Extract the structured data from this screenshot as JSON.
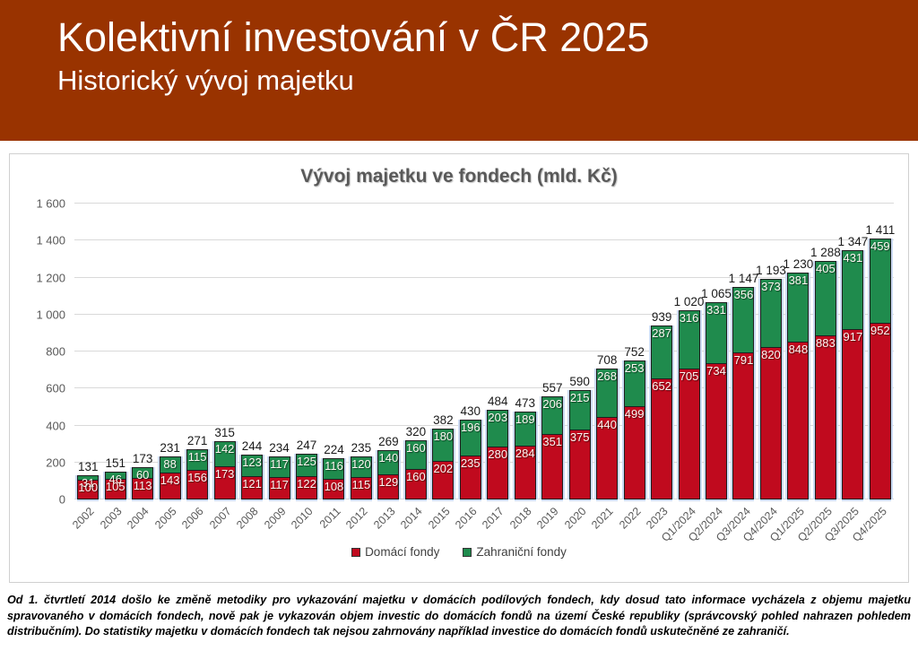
{
  "header": {
    "title": "Kolektivní investování v ČR 2025",
    "subtitle": "Historický vývoj majetku"
  },
  "chart_data": {
    "type": "bar",
    "stacked": true,
    "title": "Vývoj majetku ve fondech (mld. Kč)",
    "categories": [
      "2002",
      "2003",
      "2004",
      "2005",
      "2006",
      "2007",
      "2008",
      "2009",
      "2010",
      "2011",
      "2012",
      "2013",
      "2014",
      "2015",
      "2016",
      "2017",
      "2018",
      "2019",
      "2020",
      "2021",
      "2022",
      "2023",
      "Q1/2024",
      "Q2/2024",
      "Q3/2024",
      "Q4/2024",
      "Q1/2025",
      "Q2/2025",
      "Q3/2025",
      "Q4/2025"
    ],
    "series": [
      {
        "name": "Domácí fondy",
        "color": "#c00a1e",
        "values": [
          100,
          105,
          113,
          143,
          156,
          173,
          121,
          117,
          122,
          108,
          115,
          129,
          160,
          202,
          235,
          280,
          284,
          351,
          375,
          440,
          499,
          652,
          705,
          734,
          791,
          820,
          848,
          883,
          917,
          952
        ]
      },
      {
        "name": "Zahraniční fondy",
        "color": "#1f8b4d",
        "values": [
          31,
          46,
          60,
          88,
          115,
          142,
          123,
          117,
          125,
          116,
          120,
          140,
          160,
          180,
          196,
          203,
          189,
          206,
          215,
          268,
          253,
          287,
          316,
          331,
          356,
          373,
          381,
          405,
          431,
          459
        ]
      }
    ],
    "total_labels": [
      "131",
      "151",
      "173",
      "231",
      "271",
      "315",
      "244",
      "234",
      "247",
      "224",
      "235",
      "269",
      "320",
      "382",
      "430",
      "484",
      "473",
      "557",
      "590",
      "708",
      "752",
      "939",
      "1 020",
      "1 065",
      "1 147",
      "1 193",
      "1 230",
      "1 288",
      "1 347",
      "1 411"
    ],
    "ylim": [
      0,
      1600
    ],
    "yticks": [
      {
        "label": "0",
        "v": 0
      },
      {
        "label": "200",
        "v": 200
      },
      {
        "label": "400",
        "v": 400
      },
      {
        "label": "600",
        "v": 600
      },
      {
        "label": "800",
        "v": 800
      },
      {
        "label": "1 000",
        "v": 1000
      },
      {
        "label": "1 200",
        "v": 1200
      },
      {
        "label": "1 400",
        "v": 1400
      },
      {
        "label": "1 600",
        "v": 1600
      }
    ],
    "grid": true,
    "legend_position": "bottom"
  },
  "footer": {
    "text": "Od 1. čtvrtletí 2014 došlo ke změně metodiky pro vykazování majetku v domácích podílových fondech, kdy dosud tato informace vycházela z objemu majetku spravovaného v domácích fondech, nově pak je vykazován objem investic do domácích fondů na území České republiky (správcovský pohled nahrazen pohledem distribučním). Do statistiky majetku v domácích fondech tak nejsou zahrnovány například investice do domácích fondů uskutečněné ze zahraničí."
  },
  "colors": {
    "header_bg": "#993300",
    "domestic_red": "#c00a1e",
    "foreign_green": "#1f8b4d",
    "gridline": "#d9d9d9",
    "bar_halo_blue": "#ccdbf3"
  }
}
